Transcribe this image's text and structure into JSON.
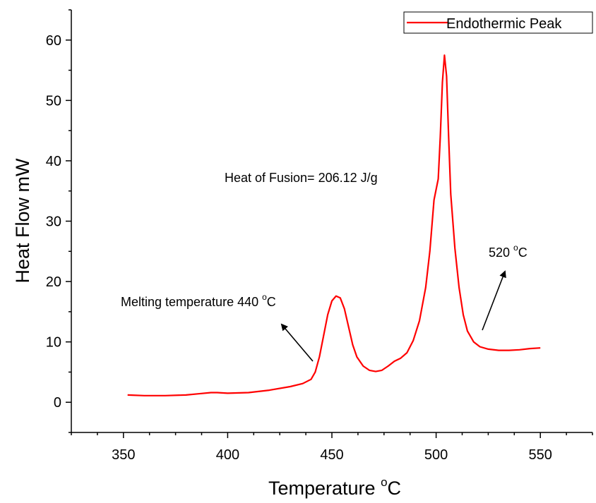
{
  "chart_data": {
    "type": "line",
    "xlabel": "Temperature",
    "xlabel_unit": "C",
    "ylabel": "Heat Flow mW",
    "xlim": [
      325,
      575
    ],
    "ylim": [
      -5,
      65
    ],
    "x_ticks": [
      350,
      400,
      450,
      500,
      550
    ],
    "y_ticks": [
      0,
      10,
      20,
      30,
      40,
      50,
      60
    ],
    "grid": false,
    "legend_position": "top-right",
    "series": [
      {
        "name": "Endothermic Peak",
        "color": "#ff0000",
        "points": [
          [
            352,
            1.2
          ],
          [
            360,
            1.1
          ],
          [
            370,
            1.1
          ],
          [
            380,
            1.2
          ],
          [
            386,
            1.4
          ],
          [
            392,
            1.6
          ],
          [
            395,
            1.6
          ],
          [
            400,
            1.5
          ],
          [
            410,
            1.6
          ],
          [
            420,
            2.0
          ],
          [
            430,
            2.6
          ],
          [
            436,
            3.1
          ],
          [
            440,
            3.8
          ],
          [
            442,
            5.0
          ],
          [
            444,
            7.5
          ],
          [
            446,
            11.0
          ],
          [
            448,
            14.5
          ],
          [
            450,
            16.8
          ],
          [
            452,
            17.6
          ],
          [
            454,
            17.3
          ],
          [
            456,
            15.5
          ],
          [
            458,
            12.5
          ],
          [
            460,
            9.5
          ],
          [
            462,
            7.5
          ],
          [
            465,
            6.0
          ],
          [
            468,
            5.3
          ],
          [
            471,
            5.1
          ],
          [
            474,
            5.3
          ],
          [
            477,
            6.0
          ],
          [
            480,
            6.8
          ],
          [
            483,
            7.3
          ],
          [
            486,
            8.2
          ],
          [
            489,
            10.2
          ],
          [
            492,
            13.5
          ],
          [
            495,
            19.0
          ],
          [
            497,
            25.0
          ],
          [
            499,
            33.5
          ],
          [
            501,
            37.0
          ],
          [
            502,
            44.0
          ],
          [
            503,
            53.0
          ],
          [
            504,
            57.5
          ],
          [
            505,
            54.0
          ],
          [
            506,
            44.0
          ],
          [
            507,
            34.5
          ],
          [
            509,
            25.5
          ],
          [
            511,
            19.0
          ],
          [
            513,
            14.5
          ],
          [
            515,
            11.8
          ],
          [
            518,
            10.0
          ],
          [
            521,
            9.2
          ],
          [
            525,
            8.8
          ],
          [
            530,
            8.6
          ],
          [
            535,
            8.6
          ],
          [
            540,
            8.7
          ],
          [
            545,
            8.9
          ],
          [
            550,
            9.0
          ]
        ]
      }
    ],
    "annotations": {
      "heat_of_fusion": "Heat of Fusion= 206.12 J/g",
      "melting_text": "Melting temperature 440 ",
      "melting_unit": "C",
      "peak_text": "520 ",
      "peak_unit": "C",
      "degree_marker": "o"
    }
  }
}
